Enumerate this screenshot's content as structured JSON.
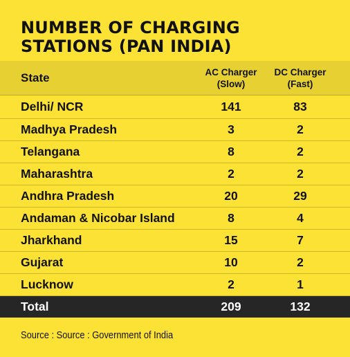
{
  "title": {
    "line1": "NUMBER OF CHARGING",
    "line2": "STATIONS (PAN INDIA)"
  },
  "table": {
    "headers": {
      "state": "State",
      "ac_line1": "AC Charger",
      "ac_line2": "(Slow)",
      "dc_line1": "DC Charger",
      "dc_line2": "(Fast)"
    },
    "rows": [
      {
        "state": "Delhi/ NCR",
        "ac": "141",
        "dc": "83"
      },
      {
        "state": "Madhya Pradesh",
        "ac": "3",
        "dc": "2"
      },
      {
        "state": "Telangana",
        "ac": "8",
        "dc": "2"
      },
      {
        "state": "Maharashtra",
        "ac": "2",
        "dc": "2"
      },
      {
        "state": "Andhra Pradesh",
        "ac": "20",
        "dc": "29"
      },
      {
        "state": "Andaman & Nicobar Island",
        "ac": "8",
        "dc": "4"
      },
      {
        "state": "Jharkhand",
        "ac": "15",
        "dc": "7"
      },
      {
        "state": "Gujarat",
        "ac": "10",
        "dc": "2"
      },
      {
        "state": "Lucknow",
        "ac": "2",
        "dc": "1"
      }
    ],
    "total": {
      "label": "Total",
      "ac": "209",
      "dc": "132"
    }
  },
  "source": "Source : Source : Government of India",
  "colors": {
    "background": "#fbe234",
    "header_band": "#e7d132",
    "total_band": "#262626",
    "text": "#111111"
  }
}
